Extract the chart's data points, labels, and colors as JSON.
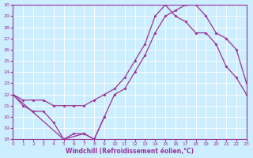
{
  "xlabel": "Windchill (Refroidissement éolien,°C)",
  "bg_color": "#cceeff",
  "line_color": "#993399",
  "xlim": [
    0,
    23
  ],
  "ylim": [
    18,
    30
  ],
  "xticks": [
    0,
    1,
    2,
    3,
    4,
    5,
    6,
    7,
    8,
    9,
    10,
    11,
    12,
    13,
    14,
    15,
    16,
    17,
    18,
    19,
    20,
    21,
    22,
    23
  ],
  "yticks": [
    18,
    19,
    20,
    21,
    22,
    23,
    24,
    25,
    26,
    27,
    28,
    29,
    30
  ],
  "line1_x": [
    0,
    1,
    2,
    3,
    4,
    5,
    6,
    7,
    8,
    9
  ],
  "line1_y": [
    22,
    21,
    20.5,
    20.5,
    19.5,
    18,
    18.5,
    18.5,
    18,
    20
  ],
  "line2_x": [
    0,
    1,
    2,
    3,
    4,
    5,
    6,
    7,
    8,
    9,
    10,
    11,
    12,
    13,
    14,
    15,
    16,
    17,
    18,
    19,
    20,
    21,
    22,
    23
  ],
  "line2_y": [
    22,
    21.5,
    21.5,
    21.5,
    21.0,
    21.0,
    21.0,
    21.0,
    21.5,
    22.0,
    22.5,
    23.5,
    25.0,
    26.5,
    29.0,
    30.0,
    29.0,
    28.5,
    27.5,
    27.5,
    26.5,
    24.5,
    23.5,
    22.0
  ],
  "line3_x": [
    0,
    5,
    7,
    8,
    9,
    10,
    11,
    12,
    13,
    14,
    15,
    16,
    17,
    18,
    19,
    20,
    21,
    22,
    23
  ],
  "line3_y": [
    22,
    18,
    18.5,
    18.0,
    20,
    22.0,
    22.5,
    24.0,
    25.5,
    27.5,
    29.0,
    29.5,
    30.0,
    30.0,
    29.0,
    27.5,
    27.0,
    26.0,
    23.0
  ]
}
